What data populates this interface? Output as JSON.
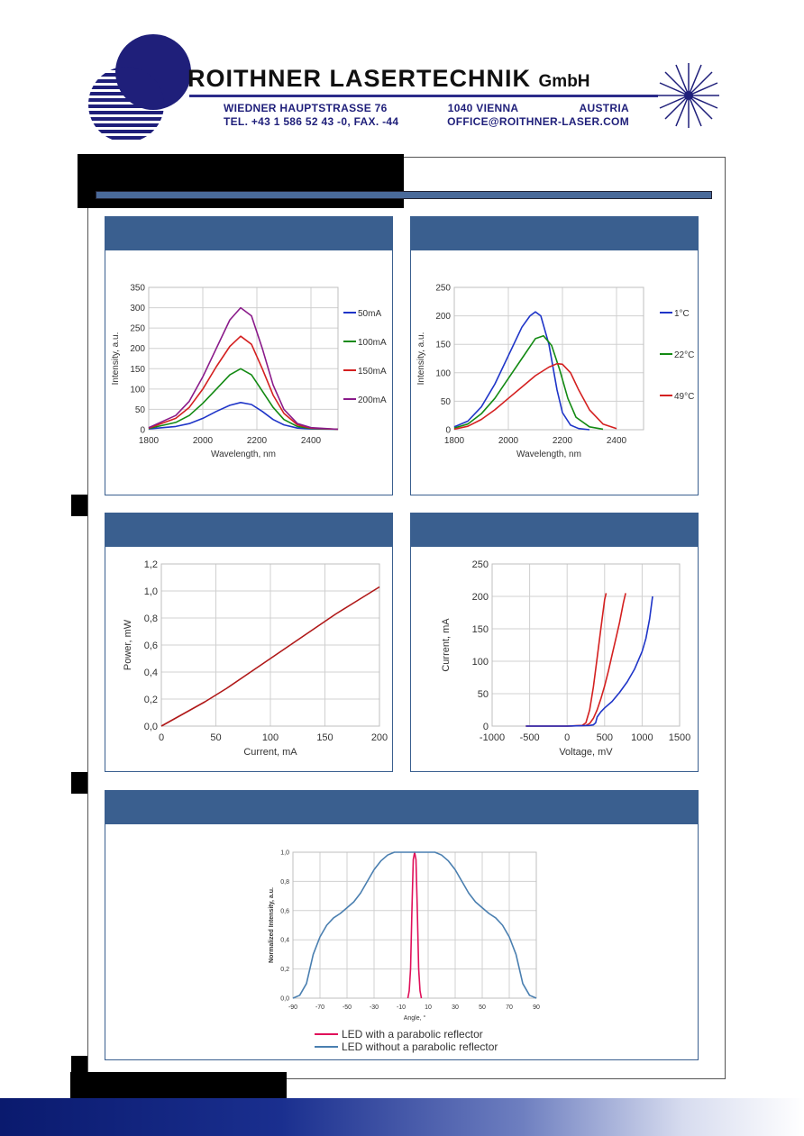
{
  "header": {
    "company_name": "ROITHNER LASERTECHNIK",
    "company_suffix": "GmbH",
    "address_street": "WIEDNER HAUPTSTRASSE 76",
    "address_city": "1040 VIENNA",
    "address_country": "AUSTRIA",
    "phone_fax": "TEL. +43 1 586 52 43 -0, FAX. -44",
    "email": "OFFICE@ROITHNER-LASER.COM"
  },
  "colors": {
    "panel_header": "#3a5f8f",
    "curve_blue": "#1f35c8",
    "curve_green": "#138a13",
    "curve_red": "#d42020",
    "curve_purple": "#8a1a8a",
    "curve_power": "#b01818",
    "curve_pink": "#e0105a",
    "curve_steel": "#4a7fb0"
  },
  "chart_data": [
    {
      "type": "line",
      "xlabel": "Wavelength, nm",
      "ylabel": "Intensity, a.u.",
      "xlim": [
        1800,
        2500
      ],
      "ylim": [
        0,
        350
      ],
      "xticks": [
        "1800",
        "2000",
        "2200",
        "2400"
      ],
      "yticks": [
        "0",
        "50",
        "100",
        "150",
        "200",
        "250",
        "300",
        "350"
      ],
      "grid": true,
      "legend": "right",
      "series": [
        {
          "name": "50mA",
          "x": [
            1800,
            1900,
            1950,
            2000,
            2050,
            2100,
            2140,
            2180,
            2220,
            2260,
            2300,
            2350,
            2400,
            2500
          ],
          "y": [
            2,
            8,
            15,
            28,
            45,
            60,
            67,
            62,
            45,
            25,
            12,
            4,
            2,
            1
          ]
        },
        {
          "name": "100mA",
          "x": [
            1800,
            1900,
            1950,
            2000,
            2050,
            2100,
            2140,
            2180,
            2220,
            2260,
            2300,
            2350,
            2400,
            2500
          ],
          "y": [
            3,
            18,
            35,
            65,
            100,
            135,
            150,
            135,
            95,
            55,
            25,
            8,
            3,
            1
          ]
        },
        {
          "name": "150mA",
          "x": [
            1800,
            1900,
            1950,
            2000,
            2050,
            2100,
            2140,
            2180,
            2220,
            2260,
            2300,
            2350,
            2400,
            2500
          ],
          "y": [
            4,
            28,
            55,
            100,
            155,
            205,
            230,
            210,
            150,
            85,
            40,
            12,
            4,
            1
          ]
        },
        {
          "name": "200mA",
          "x": [
            1800,
            1900,
            1950,
            2000,
            2050,
            2100,
            2140,
            2180,
            2220,
            2260,
            2300,
            2350,
            2400,
            2500
          ],
          "y": [
            5,
            35,
            70,
            130,
            200,
            270,
            300,
            280,
            200,
            110,
            50,
            15,
            5,
            1
          ]
        }
      ]
    },
    {
      "type": "line",
      "xlabel": "Wavelength, nm",
      "ylabel": "Intensity, a.u.",
      "xlim": [
        1800,
        2500
      ],
      "ylim": [
        0,
        250
      ],
      "xticks": [
        "1800",
        "2000",
        "2200",
        "2400"
      ],
      "yticks": [
        "0",
        "50",
        "100",
        "150",
        "200",
        "250"
      ],
      "grid": true,
      "legend": "right",
      "series": [
        {
          "name": "1°C",
          "x": [
            1800,
            1850,
            1900,
            1950,
            2000,
            2050,
            2080,
            2100,
            2120,
            2150,
            2180,
            2200,
            2230,
            2260,
            2300
          ],
          "y": [
            5,
            15,
            40,
            80,
            130,
            180,
            200,
            207,
            200,
            150,
            70,
            30,
            8,
            2,
            0
          ]
        },
        {
          "name": "22°C",
          "x": [
            1800,
            1850,
            1900,
            1950,
            2000,
            2050,
            2100,
            2130,
            2160,
            2190,
            2220,
            2250,
            2300,
            2350
          ],
          "y": [
            3,
            10,
            28,
            55,
            90,
            125,
            160,
            165,
            148,
            105,
            55,
            22,
            5,
            1
          ]
        },
        {
          "name": "49°C",
          "x": [
            1800,
            1850,
            1900,
            1950,
            2000,
            2050,
            2100,
            2150,
            2180,
            2200,
            2230,
            2260,
            2300,
            2350,
            2400
          ],
          "y": [
            1,
            6,
            18,
            35,
            55,
            75,
            95,
            110,
            116,
            115,
            100,
            70,
            35,
            10,
            2
          ]
        }
      ]
    },
    {
      "type": "line",
      "xlabel": "Current, mA",
      "ylabel": "Power, mW",
      "xlim": [
        0,
        200
      ],
      "ylim": [
        0,
        1.2
      ],
      "xticks": [
        "0",
        "50",
        "100",
        "150",
        "200"
      ],
      "yticks": [
        "0,0",
        "0,2",
        "0,4",
        "0,6",
        "0,8",
        "1,0",
        "1,2"
      ],
      "grid": true,
      "series": [
        {
          "x": [
            0,
            20,
            40,
            60,
            80,
            100,
            120,
            140,
            160,
            180,
            200
          ],
          "y": [
            0,
            0.09,
            0.18,
            0.28,
            0.39,
            0.5,
            0.61,
            0.72,
            0.83,
            0.93,
            1.03
          ]
        }
      ]
    },
    {
      "type": "line",
      "xlabel": "Voltage, mV",
      "ylabel": "Current, mA",
      "xlim": [
        -1000,
        1500
      ],
      "ylim": [
        0,
        250
      ],
      "xticks": [
        "-1000",
        "-500",
        "0",
        "500",
        "1000",
        "1500"
      ],
      "yticks": [
        "0",
        "50",
        "100",
        "150",
        "200",
        "250"
      ],
      "grid": true,
      "series": [
        {
          "x": [
            -550,
            0,
            200,
            250,
            300,
            350,
            400,
            450,
            500,
            520
          ],
          "y": [
            0,
            0,
            1,
            5,
            25,
            60,
            105,
            150,
            195,
            205
          ]
        },
        {
          "x": [
            -550,
            0,
            250,
            300,
            350,
            400,
            450,
            500,
            550,
            600,
            650,
            700,
            750,
            780
          ],
          "y": [
            0,
            0,
            1,
            4,
            12,
            25,
            42,
            62,
            85,
            110,
            135,
            160,
            190,
            205
          ]
        },
        {
          "x": [
            -550,
            0,
            300,
            350,
            380,
            400,
            450,
            500,
            600,
            700,
            800,
            900,
            1000,
            1050,
            1100,
            1140
          ],
          "y": [
            0,
            0,
            1,
            2,
            5,
            14,
            22,
            28,
            38,
            52,
            68,
            88,
            115,
            135,
            165,
            200
          ]
        }
      ]
    },
    {
      "type": "line",
      "xlabel": "Angle, °",
      "ylabel": "Normalized Intensity, a.u.",
      "xlim": [
        -90,
        90
      ],
      "ylim": [
        0,
        1.0
      ],
      "xticks": [
        "-90",
        "-70",
        "-50",
        "-30",
        "-10",
        "10",
        "30",
        "50",
        "70",
        "90"
      ],
      "yticks": [
        "0,0",
        "0,2",
        "0,4",
        "0,6",
        "0,8",
        "1,0"
      ],
      "grid": true,
      "legend": "bottom",
      "series": [
        {
          "name": "LED with a parabolic reflector",
          "x": [
            -5,
            -4,
            -3,
            -2,
            -1,
            0,
            1,
            2,
            3,
            4,
            5
          ],
          "y": [
            0,
            0.05,
            0.2,
            0.6,
            0.95,
            1.0,
            0.95,
            0.6,
            0.2,
            0.05,
            0
          ]
        },
        {
          "name": "LED without a parabolic reflector",
          "x": [
            -90,
            -85,
            -80,
            -75,
            -70,
            -65,
            -60,
            -55,
            -50,
            -45,
            -40,
            -35,
            -30,
            -25,
            -20,
            -15,
            -10,
            -5,
            0,
            5,
            10,
            15,
            20,
            25,
            30,
            35,
            40,
            45,
            50,
            55,
            60,
            65,
            70,
            75,
            80,
            85,
            90
          ],
          "y": [
            0,
            0.02,
            0.1,
            0.3,
            0.42,
            0.5,
            0.55,
            0.58,
            0.62,
            0.66,
            0.72,
            0.8,
            0.88,
            0.94,
            0.98,
            1.0,
            1.0,
            1.0,
            1.0,
            1.0,
            1.0,
            1.0,
            0.98,
            0.94,
            0.88,
            0.8,
            0.72,
            0.66,
            0.62,
            0.58,
            0.55,
            0.5,
            0.42,
            0.3,
            0.1,
            0.02,
            0
          ]
        }
      ]
    }
  ]
}
